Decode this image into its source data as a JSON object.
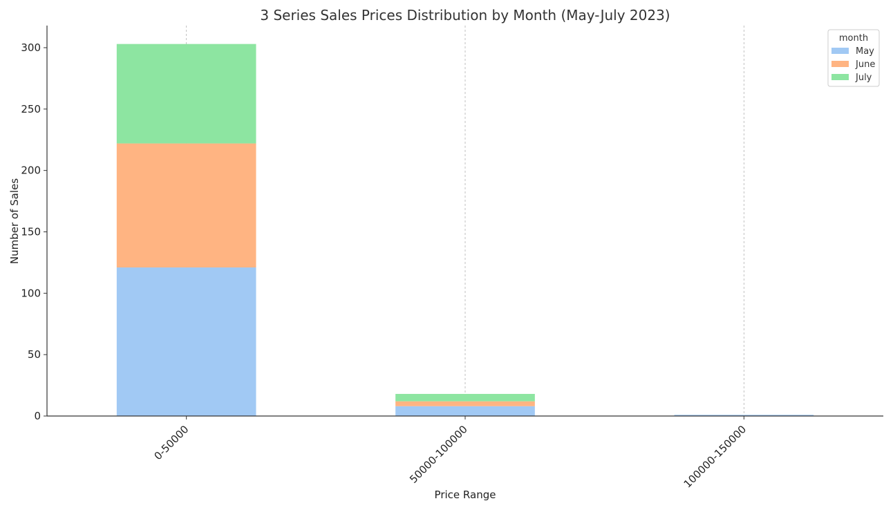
{
  "chart_data": {
    "type": "bar",
    "stacked": true,
    "title": "3 Series Sales Prices Distribution by Month (May-July 2023)",
    "xlabel": "Price Range",
    "ylabel": "Number of Sales",
    "categories": [
      "0-50000",
      "50000-100000",
      "100000-150000"
    ],
    "series": [
      {
        "name": "May",
        "values": [
          121,
          8,
          1
        ],
        "color": "#a1c9f4"
      },
      {
        "name": "June",
        "values": [
          101,
          4,
          0
        ],
        "color": "#ffb482"
      },
      {
        "name": "July",
        "values": [
          81,
          6,
          0
        ],
        "color": "#8de5a1"
      }
    ],
    "ylim": [
      0,
      318
    ],
    "yticks": [
      0,
      50,
      100,
      150,
      200,
      250,
      300
    ],
    "grid": "vertical dashed",
    "legend": {
      "title": "month",
      "position": "top-right"
    },
    "x_tick_rotation": "45 degrees"
  }
}
